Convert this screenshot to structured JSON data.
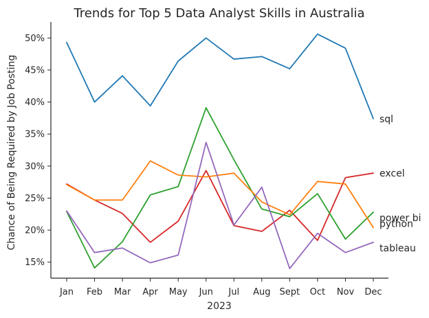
{
  "chart_data": {
    "type": "line",
    "title": "Trends for Top 5 Data Analyst Skills in Australia",
    "xlabel": "2023",
    "ylabel": "Chance of Being Required by Job Posting",
    "categories": [
      "Jan",
      "Feb",
      "Mar",
      "Apr",
      "May",
      "Jun",
      "Jul",
      "Aug",
      "Sept",
      "Oct",
      "Nov",
      "Dec"
    ],
    "ylim": [
      12.5,
      52.5
    ],
    "yticks": [
      15,
      20,
      25,
      30,
      35,
      40,
      45,
      50
    ],
    "ytick_labels": [
      "15%",
      "20%",
      "25%",
      "30%",
      "35%",
      "40%",
      "45%",
      "50%"
    ],
    "grid": false,
    "legend": "none",
    "series": [
      {
        "name": "sql",
        "color": "#1f77b4",
        "values": [
          49.3,
          40.0,
          44.1,
          39.4,
          46.4,
          50.0,
          46.7,
          47.1,
          45.2,
          50.6,
          48.4,
          37.4
        ]
      },
      {
        "name": "excel",
        "color": "#d62728",
        "values": [
          27.2,
          24.7,
          22.6,
          18.1,
          21.4,
          29.3,
          20.7,
          19.8,
          23.1,
          18.4,
          28.2,
          28.9
        ]
      },
      {
        "name": "power bi",
        "color": "#2ca02c",
        "values": [
          22.9,
          14.1,
          18.2,
          25.5,
          26.8,
          39.1,
          31.0,
          23.3,
          22.1,
          25.7,
          18.6,
          22.8
        ]
      },
      {
        "name": "python",
        "color": "#ff7f0e",
        "values": [
          27.1,
          24.7,
          24.7,
          30.8,
          28.6,
          28.3,
          28.9,
          24.4,
          22.4,
          27.6,
          27.2,
          20.4
        ]
      },
      {
        "name": "tableau",
        "color": "#9467bd",
        "values": [
          23.0,
          16.5,
          17.2,
          14.9,
          16.1,
          33.7,
          20.8,
          26.7,
          14.0,
          19.5,
          16.5,
          18.1
        ]
      }
    ]
  }
}
